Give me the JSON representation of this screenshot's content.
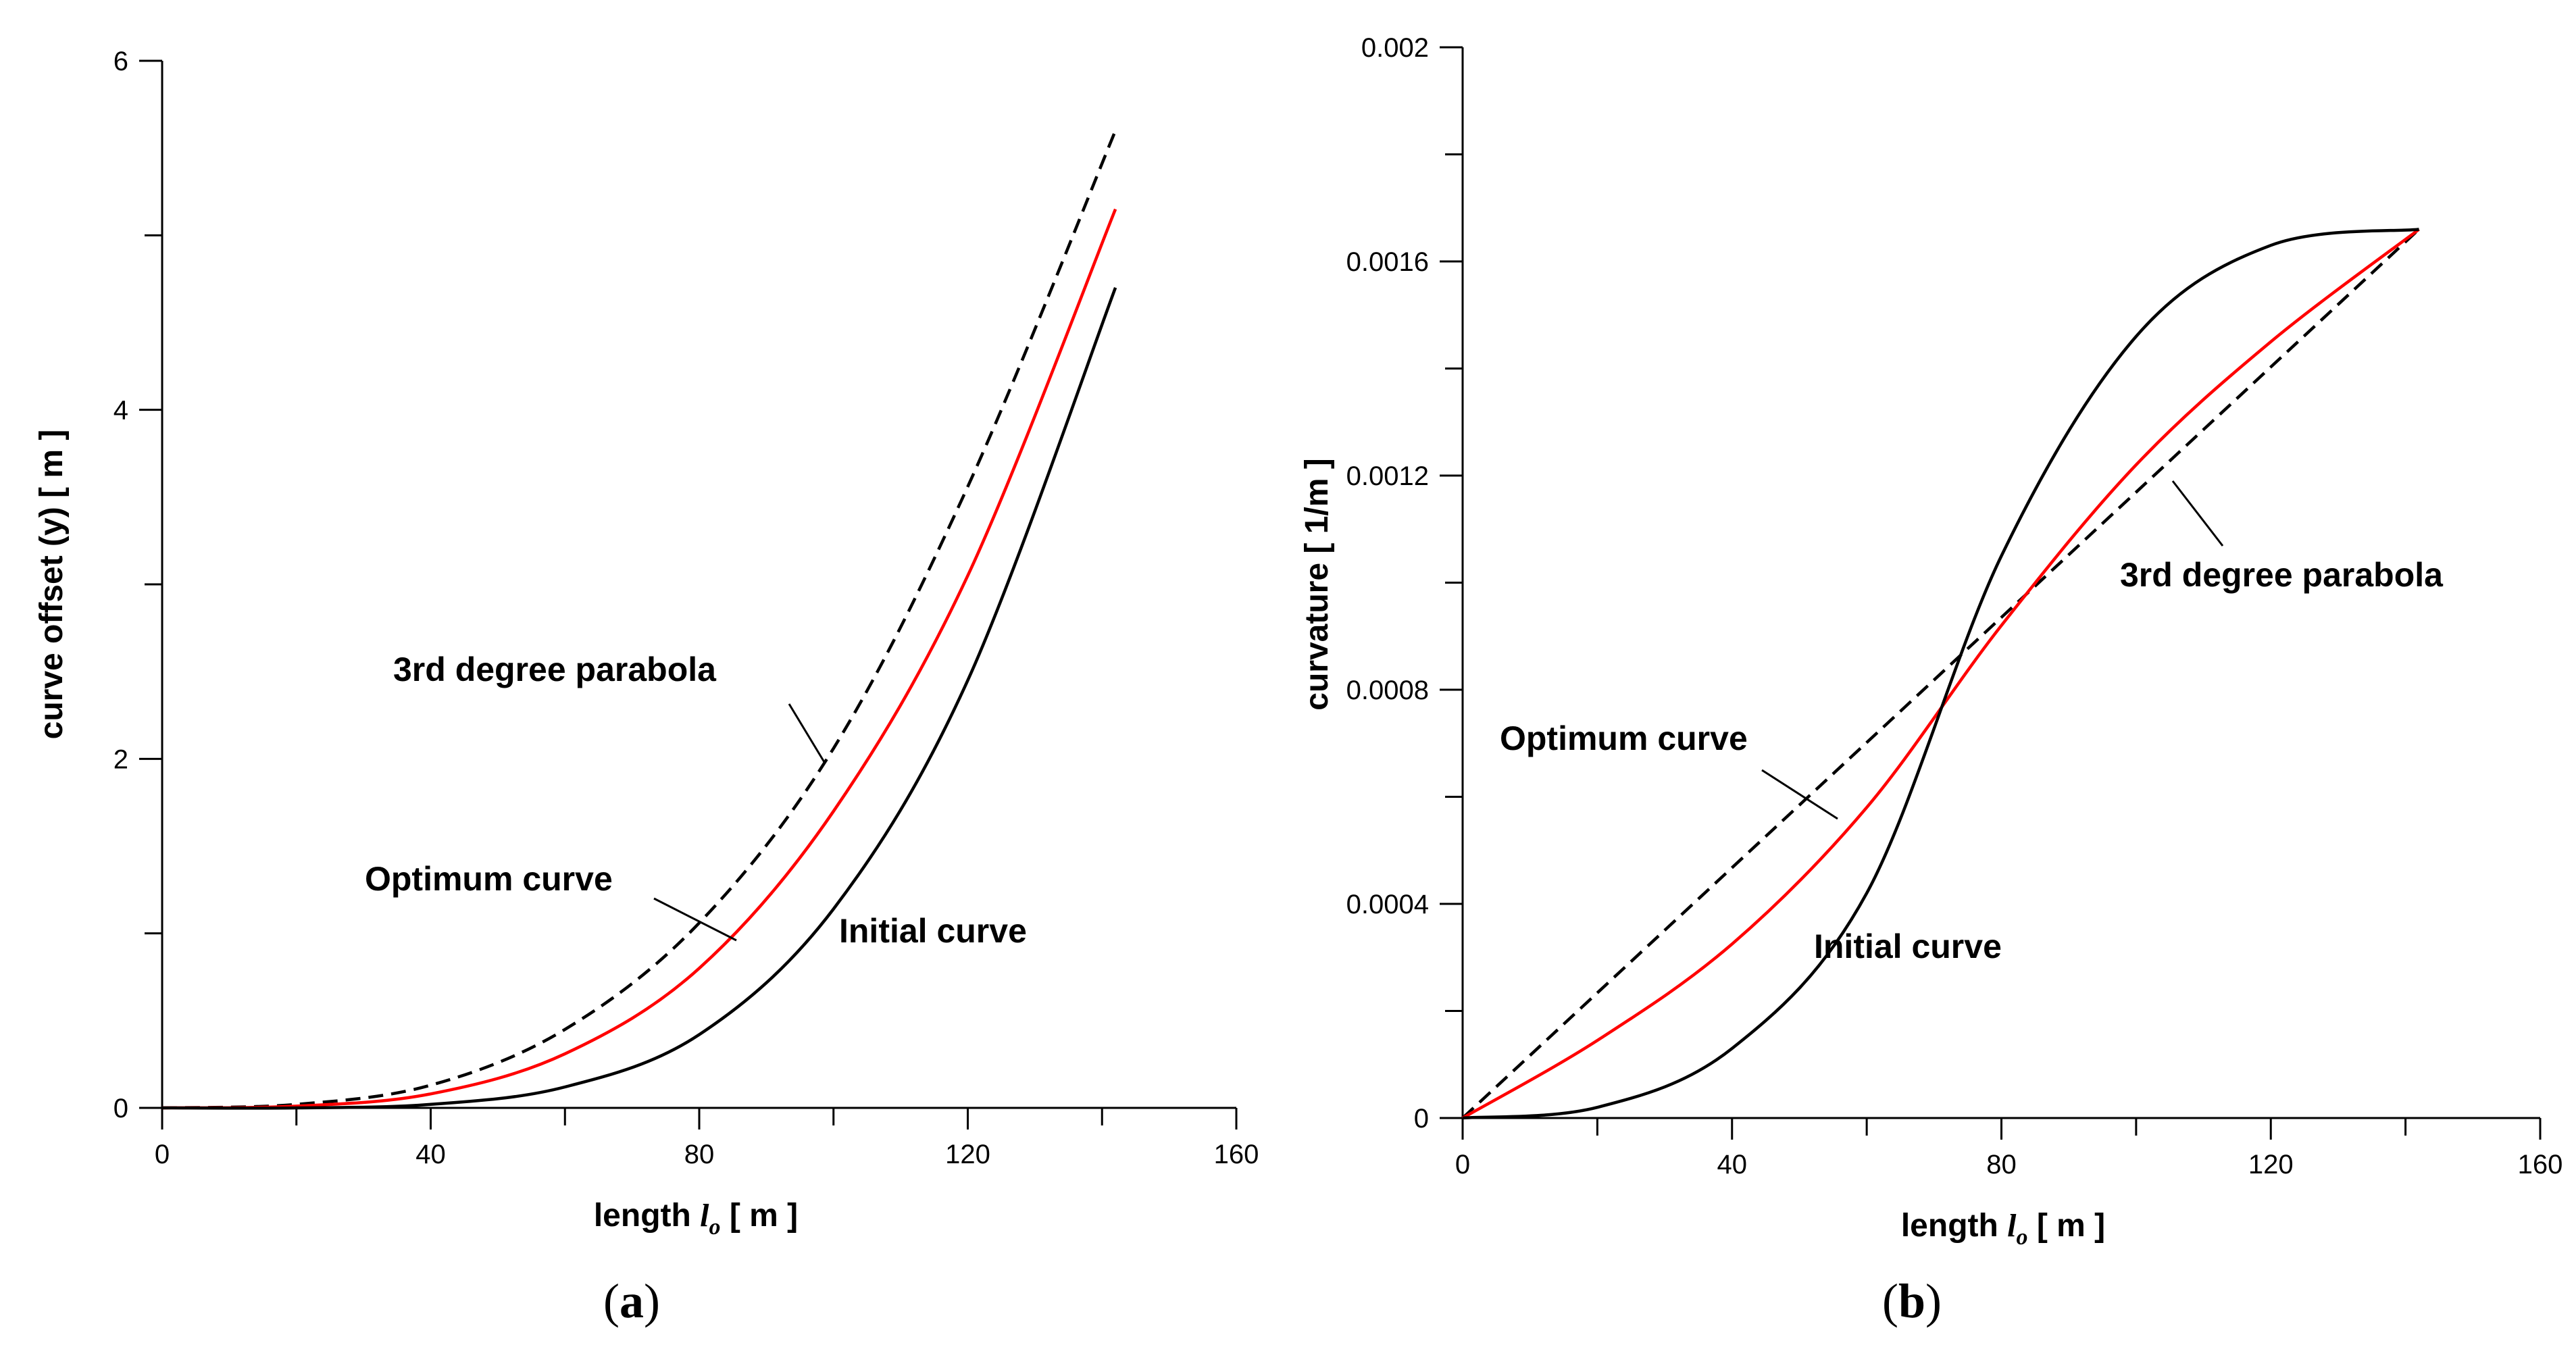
{
  "chart_data": [
    {
      "type": "line",
      "panel_label": "a",
      "xlabel_prefix": "length ",
      "xlabel_var": "l",
      "xlabel_sub": "o",
      "xlabel_unit": " [ m ]",
      "ylabel": "curve offset (y) [ m ]",
      "xlim": [
        0,
        160
      ],
      "ylim": [
        0,
        6
      ],
      "xticks": [
        0,
        40,
        80,
        120,
        160
      ],
      "yticks": [
        0,
        2,
        4,
        6
      ],
      "xtick_labels": [
        "0",
        "40",
        "80",
        "120",
        "160"
      ],
      "ytick_labels": [
        "0",
        "2",
        "4",
        "6"
      ],
      "series": [
        {
          "name": "3rd degree parabola",
          "style": "dashed",
          "color": "#000000",
          "x": [
            0,
            20,
            40,
            60,
            80,
            100,
            120,
            142
          ],
          "y": [
            0,
            0.02,
            0.13,
            0.45,
            1.06,
            2.06,
            3.56,
            5.6
          ]
        },
        {
          "name": "Optimum curve",
          "style": "solid",
          "color": "#ff0000",
          "x": [
            0,
            20,
            40,
            60,
            80,
            100,
            120,
            142
          ],
          "y": [
            0,
            0.01,
            0.08,
            0.31,
            0.8,
            1.7,
            3.05,
            5.15
          ]
        },
        {
          "name": "Initial curve",
          "style": "solid",
          "color": "#000000",
          "x": [
            0,
            20,
            40,
            60,
            80,
            100,
            120,
            142
          ],
          "y": [
            0,
            0.0,
            0.02,
            0.12,
            0.42,
            1.14,
            2.45,
            4.7
          ]
        }
      ],
      "annotations": [
        {
          "text": "3rd degree parabola",
          "at_x": 100,
          "at_y": 1.98
        },
        {
          "text": "Optimum curve",
          "at_x": 87,
          "at_y": 0.93
        },
        {
          "text": "Initial curve"
        }
      ]
    },
    {
      "type": "line",
      "panel_label": "b",
      "xlabel_prefix": "length ",
      "xlabel_var": "l",
      "xlabel_sub": "o",
      "xlabel_unit": " [ m ]",
      "ylabel": "curvature [ 1/m ]",
      "xlim": [
        0,
        160
      ],
      "ylim": [
        0,
        0.002
      ],
      "xticks": [
        0,
        40,
        80,
        120,
        160
      ],
      "yticks": [
        0,
        0.0004,
        0.0008,
        0.0012,
        0.0016,
        0.002
      ],
      "xtick_labels": [
        "0",
        "40",
        "80",
        "120",
        "160"
      ],
      "ytick_labels": [
        "0",
        "0.0004",
        "0.0008",
        "0.0012",
        "0.0016",
        "0.002"
      ],
      "series": [
        {
          "name": "3rd degree parabola",
          "style": "dashed",
          "color": "#000000",
          "x": [
            0,
            142
          ],
          "y": [
            0,
            0.00166
          ]
        },
        {
          "name": "Optimum curve",
          "style": "solid",
          "color": "#ff0000",
          "x": [
            0,
            20,
            40,
            60,
            80,
            100,
            120,
            142
          ],
          "y": [
            0,
            0.000145,
            0.000325,
            0.00058,
            0.00092,
            0.00122,
            0.00145,
            0.00166
          ]
        },
        {
          "name": "Initial curve",
          "style": "solid",
          "color": "#000000",
          "x": [
            0,
            20,
            40,
            60,
            80,
            100,
            120,
            142
          ],
          "y": [
            0,
            2e-05,
            0.00013,
            0.00042,
            0.00105,
            0.00146,
            0.00163,
            0.00166
          ]
        }
      ],
      "annotations": [
        {
          "text": "3rd degree parabola",
          "at_x": 104,
          "at_y": 0.00122
        },
        {
          "text": "Optimum curve",
          "at_x": 56,
          "at_y": 0.00056
        },
        {
          "text": "Initial curve"
        }
      ]
    }
  ]
}
